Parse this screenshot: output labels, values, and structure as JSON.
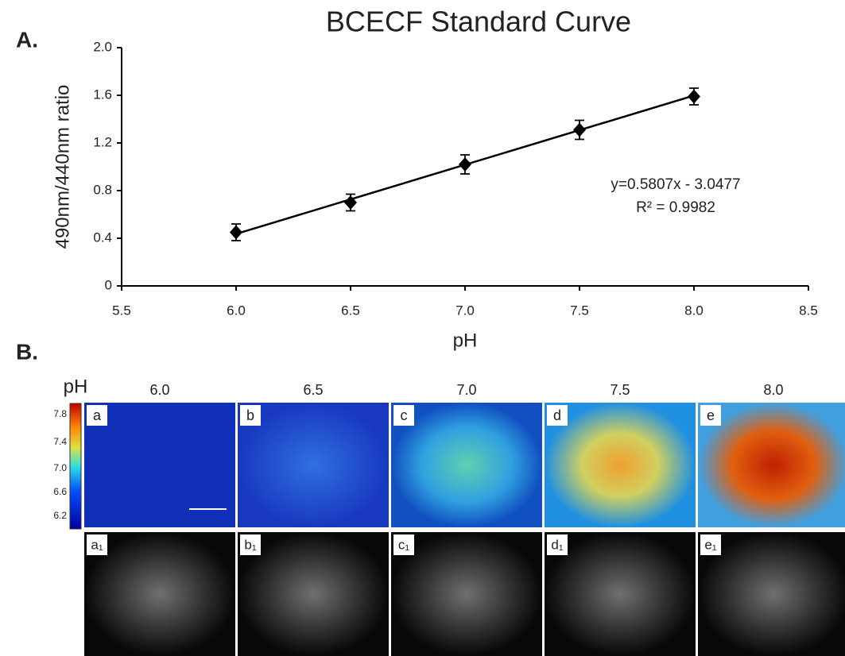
{
  "chart_data": {
    "type": "scatter",
    "title": "BCECF Standard Curve",
    "panel_label": "A.",
    "x_label": "pH",
    "y_label": "490nm/440nm ratio",
    "x": [
      6.0,
      6.5,
      7.0,
      7.5,
      8.0
    ],
    "values": [
      0.45,
      0.7,
      1.02,
      1.31,
      1.59
    ],
    "errors": [
      0.07,
      0.07,
      0.08,
      0.08,
      0.07
    ],
    "color": "#000000",
    "fit": {
      "slope": 0.5807,
      "intercept": -3.0477
    },
    "annotations": [
      "y=0.5807x - 3.0477",
      "R² = 0.9982"
    ],
    "xlim": [
      5.5,
      8.5
    ],
    "xticks": [
      5.5,
      {
        "value": 6,
        "label": "6.0"
      },
      6.5,
      {
        "value": 7,
        "label": "7.0"
      },
      7.5,
      {
        "value": 8,
        "label": "8.0"
      },
      8.5
    ],
    "ylim": [
      0,
      2
    ],
    "yticks": [
      0,
      0.4,
      0.8,
      1.2,
      1.6,
      {
        "value": 2,
        "label": "2.0"
      }
    ]
  },
  "panel_b": {
    "label": "B.",
    "colorbar": {
      "title": "pH",
      "ticks": [
        "7.8",
        "7.4",
        "7.0",
        "6.6",
        "6.2"
      ]
    },
    "columns": [
      "6.0",
      "6.5",
      "7.0",
      "7.5",
      "8.0"
    ],
    "top_labels": [
      "a",
      "b",
      "c",
      "d",
      "e"
    ],
    "bottom_labels": [
      "a₁",
      "b₁",
      "c₁",
      "d₁",
      "e₁"
    ]
  }
}
